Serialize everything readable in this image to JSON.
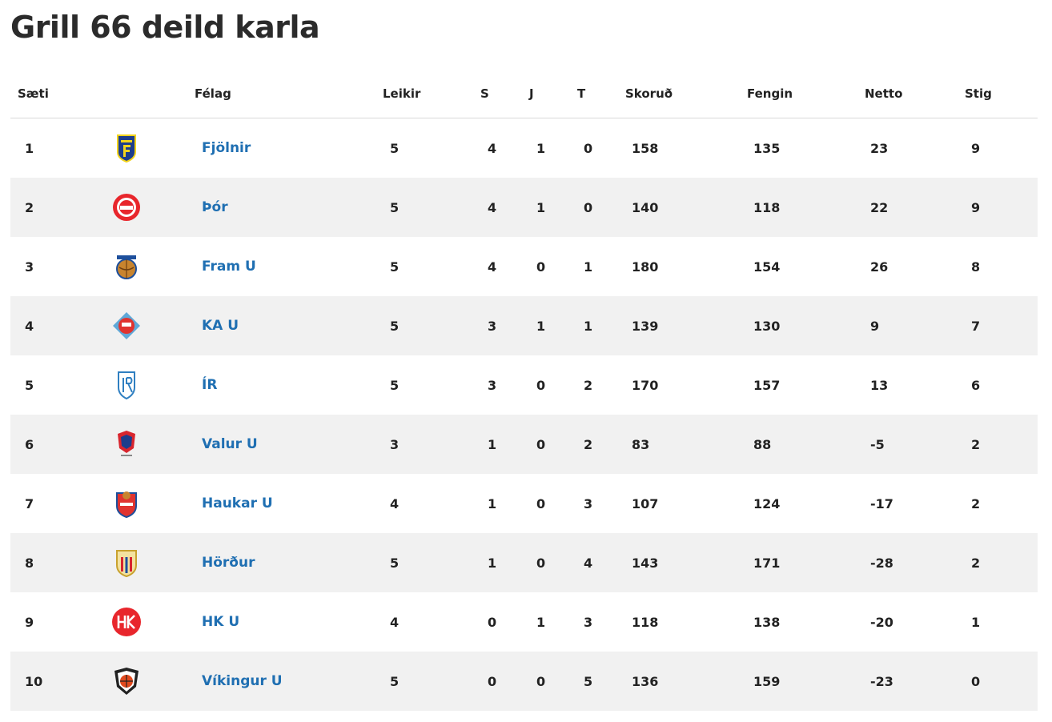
{
  "title": "Grill 66 deild karla",
  "headers": {
    "position": "Sæti",
    "club": "Félag",
    "games": "Leikir",
    "wins": "S",
    "draws": "J",
    "losses": "T",
    "scored": "Skoruð",
    "conceded": "Fengin",
    "net": "Netto",
    "points": "Stig"
  },
  "rows": [
    {
      "pos": "1",
      "team": "Fjölnir",
      "logo": "fjolnir-crest-icon",
      "games": "5",
      "w": "4",
      "d": "1",
      "l": "0",
      "for": "158",
      "ag": "135",
      "net": "23",
      "pts": "9"
    },
    {
      "pos": "2",
      "team": "Þór",
      "logo": "thor-crest-icon",
      "games": "5",
      "w": "4",
      "d": "1",
      "l": "0",
      "for": "140",
      "ag": "118",
      "net": "22",
      "pts": "9"
    },
    {
      "pos": "3",
      "team": "Fram U",
      "logo": "fram-crest-icon",
      "games": "5",
      "w": "4",
      "d": "0",
      "l": "1",
      "for": "180",
      "ag": "154",
      "net": "26",
      "pts": "8"
    },
    {
      "pos": "4",
      "team": "KA U",
      "logo": "ka-crest-icon",
      "games": "5",
      "w": "3",
      "d": "1",
      "l": "1",
      "for": "139",
      "ag": "130",
      "net": "9",
      "pts": "7"
    },
    {
      "pos": "5",
      "team": "ÍR",
      "logo": "ir-crest-icon",
      "games": "5",
      "w": "3",
      "d": "0",
      "l": "2",
      "for": "170",
      "ag": "157",
      "net": "13",
      "pts": "6"
    },
    {
      "pos": "6",
      "team": "Valur U",
      "logo": "valur-crest-icon",
      "games": "3",
      "w": "1",
      "d": "0",
      "l": "2",
      "for": "83",
      "ag": "88",
      "net": "-5",
      "pts": "2"
    },
    {
      "pos": "7",
      "team": "Haukar U",
      "logo": "haukar-crest-icon",
      "games": "4",
      "w": "1",
      "d": "0",
      "l": "3",
      "for": "107",
      "ag": "124",
      "net": "-17",
      "pts": "2"
    },
    {
      "pos": "8",
      "team": "Hörður",
      "logo": "hordur-crest-icon",
      "games": "5",
      "w": "1",
      "d": "0",
      "l": "4",
      "for": "143",
      "ag": "171",
      "net": "-28",
      "pts": "2"
    },
    {
      "pos": "9",
      "team": "HK U",
      "logo": "hk-crest-icon",
      "games": "4",
      "w": "0",
      "d": "1",
      "l": "3",
      "for": "118",
      "ag": "138",
      "net": "-20",
      "pts": "1"
    },
    {
      "pos": "10",
      "team": "Víkingur U",
      "logo": "vikingur-crest-icon",
      "games": "5",
      "w": "0",
      "d": "0",
      "l": "5",
      "for": "136",
      "ag": "159",
      "net": "-23",
      "pts": "0"
    }
  ],
  "colors": {
    "link": "#1f6fb2",
    "row_alt": "#f1f1f1",
    "title": "#2b2b2b"
  }
}
